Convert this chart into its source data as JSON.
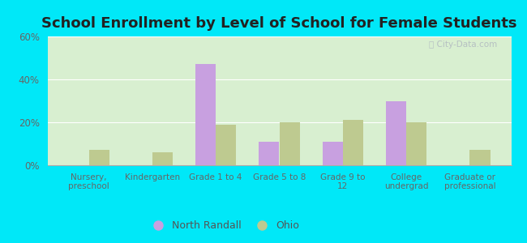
{
  "title": "School Enrollment by Level of School for Female Students",
  "categories": [
    "Nursery,\npreschool",
    "Kindergarten",
    "Grade 1 to 4",
    "Grade 5 to 8",
    "Grade 9 to\n12",
    "College\nundergrad",
    "Graduate or\nprofessional"
  ],
  "north_randall": [
    0,
    0,
    47,
    11,
    11,
    30,
    0
  ],
  "ohio": [
    7,
    6,
    19,
    20,
    21,
    20,
    7
  ],
  "bar_color_nr": "#c8a0e0",
  "bar_color_ohio": "#beca90",
  "background_outer": "#00e8f8",
  "background_inner": "#d8efd0",
  "ylim": [
    0,
    60
  ],
  "yticks": [
    0,
    20,
    40,
    60
  ],
  "ytick_labels": [
    "0%",
    "20%",
    "40%",
    "60%"
  ],
  "legend_nr": "North Randall",
  "legend_ohio": "Ohio",
  "title_fontsize": 13,
  "bar_width": 0.32
}
